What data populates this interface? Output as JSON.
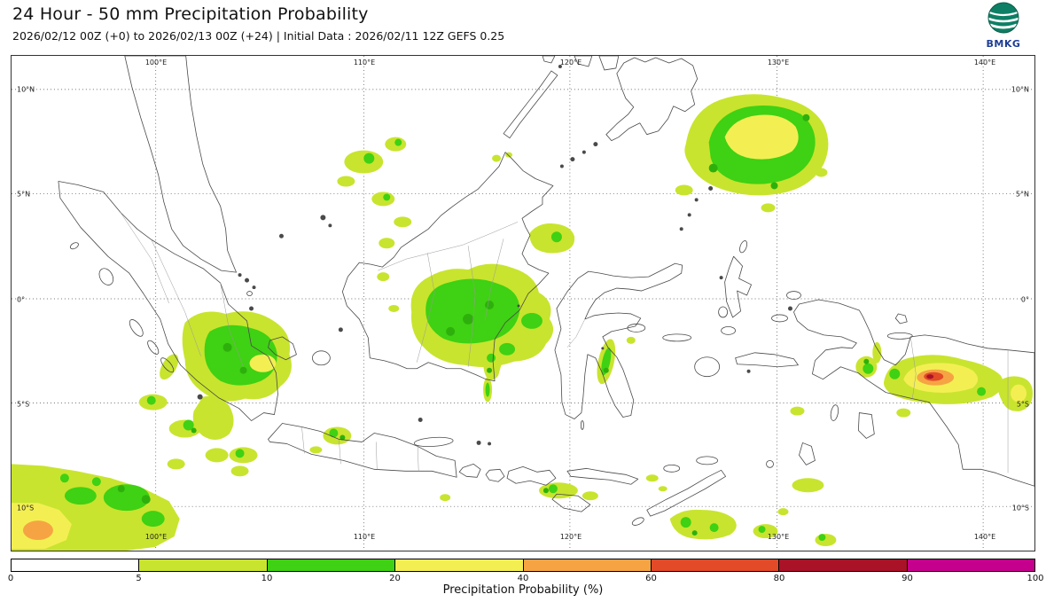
{
  "header": {
    "title": "24 Hour - 50 mm Precipitation Probability",
    "subtitle": "2026/02/12 00Z (+0) to 2026/02/13 00Z (+24) | Initial Data : 2026/02/11 12Z GEFS 0.25"
  },
  "logo": {
    "text": "BMKG",
    "text_color": "#1c3e94",
    "globe_color": "#0d7f65"
  },
  "map": {
    "lon_labels": [
      "100°E",
      "110°E",
      "120°E",
      "130°E",
      "140°E"
    ],
    "lat_labels": [
      "10°N",
      "5°N",
      "0°",
      "5°S",
      "10°S"
    ]
  },
  "colorbar": {
    "label": "Precipitation Probability (%)",
    "tick_labels": [
      "0",
      "5",
      "10",
      "20",
      "40",
      "60",
      "80",
      "90",
      "100"
    ],
    "segment_ranges": [
      "0-5",
      "5-10",
      "10-20",
      "20-40",
      "40-60",
      "60-80",
      "80-90",
      "90-100"
    ],
    "segment_colors": [
      "#ffffff",
      "#c9e42e",
      "#3fd113",
      "#f3ef53",
      "#f6a443",
      "#e24a28",
      "#aa1227",
      "#c5008c"
    ]
  },
  "chart_data": {
    "type": "heatmap",
    "title": "24 Hour - 50 mm Precipitation Probability",
    "valid_period": "2026/02/12 00Z (+0) to 2026/02/13 00Z (+24)",
    "initial_data": "2026/02/11 12Z GEFS 0.25",
    "scale_percent": [
      0,
      5,
      10,
      20,
      40,
      60,
      80,
      90,
      100
    ],
    "lon_ticks": [
      "100°E",
      "110°E",
      "120°E",
      "130°E",
      "140°E"
    ],
    "lat_ticks": [
      "10°N",
      "5°N",
      "0°",
      "5°S",
      "10°S"
    ],
    "regions": [
      {
        "area": "Philippine Sea north of Halmahera",
        "probability_band": "20-40"
      },
      {
        "area": "Central Kalimantan",
        "probability_band": "10-20"
      },
      {
        "area": "Central Sumatra",
        "probability_band": "20-40"
      },
      {
        "area": "Indian Ocean southwest of Sumatra",
        "probability_band": "40-60"
      },
      {
        "area": "Northern Papua",
        "probability_band": "60-90"
      },
      {
        "area": "Flores and Banda seas (scattered)",
        "probability_band": "10-20"
      }
    ]
  }
}
